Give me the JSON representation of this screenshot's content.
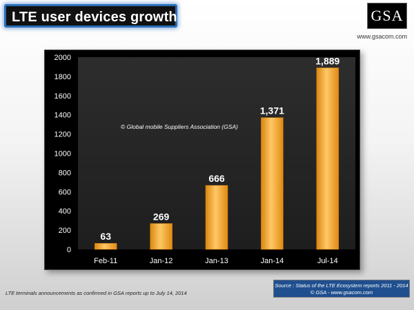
{
  "header": {
    "title": "LTE user devices growth",
    "logo_text": "GSA",
    "logo_url": "www.gsacom.com"
  },
  "chart_data": {
    "type": "bar",
    "title": "LTE user devices growth",
    "categories": [
      "Feb-11",
      "Jan-12",
      "Jan-13",
      "Jan-14",
      "Jul-14"
    ],
    "values": [
      63,
      269,
      666,
      1371,
      1889
    ],
    "data_labels": [
      "63",
      "269",
      "666",
      "1,371",
      "1,889"
    ],
    "ylim": [
      0,
      2000
    ],
    "yticks": [
      0,
      200,
      400,
      600,
      800,
      1000,
      1200,
      1400,
      1600,
      1800,
      2000
    ],
    "xlabel": "",
    "ylabel": "",
    "grid": false,
    "legend": "none",
    "annotation": "© Global mobile Suppliers Association (GSA)",
    "colors": {
      "bar": "#f5a623",
      "bar_light": "#ffd27a",
      "bar_dark": "#d77d10",
      "plot_bg": "#262626",
      "text": "#ffffff"
    }
  },
  "footer": {
    "note": "LTE terminals announcements as confirmed in GSA reports up to July 14, 2014",
    "source_line1": "Source : Status of the LTE Ecosystem reports 2011 - 2014",
    "source_line2": "© GSA - www.gsacom.com"
  }
}
